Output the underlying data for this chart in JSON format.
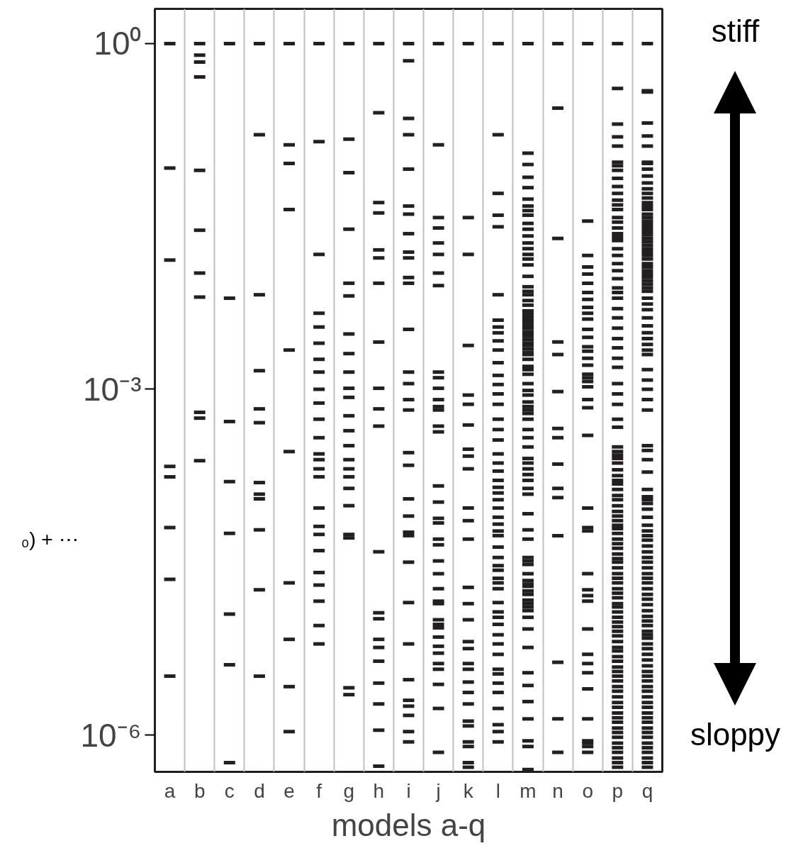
{
  "chart_data": {
    "type": "scatter",
    "log": true,
    "xlabel": "models a-q",
    "categories": [
      "a",
      "b",
      "c",
      "d",
      "e",
      "f",
      "g",
      "h",
      "i",
      "j",
      "k",
      "l",
      "m",
      "n",
      "o",
      "p",
      "q"
    ],
    "ylim": [
      4.79e-07,
      2.0
    ],
    "yticks": [
      {
        "value": 1,
        "label": "10⁰"
      },
      {
        "value": 0.001,
        "label": "10⁻³"
      },
      {
        "value": 1e-06,
        "label": "10⁻⁶"
      }
    ],
    "grid": "x",
    "annotations": [
      "stiff",
      "sloppy",
      "₀) + ⋯"
    ],
    "series": [
      {
        "color": "#231f20",
        "x": [
          "a",
          "a",
          "a",
          "a",
          "a",
          "a",
          "a",
          "a"
        ],
        "values": [
          1,
          0.0832,
          0.0132,
          0.000214,
          0.000174,
          6.31e-05,
          2.24e-05,
          3.24e-06
        ]
      },
      {
        "color": "#231f20",
        "x": [
          "b",
          "b",
          "b",
          "b",
          "b",
          "b",
          "b",
          "b",
          "b",
          "b",
          "b"
        ],
        "values": [
          1,
          0.794,
          0.692,
          0.513,
          0.0794,
          0.024,
          0.0102,
          0.00631,
          0.000631,
          0.000562,
          0.00024
        ]
      },
      {
        "color": "#231f20",
        "x": [
          "c",
          "c",
          "c",
          "c",
          "c",
          "c",
          "c",
          "c"
        ],
        "values": [
          1,
          0.00617,
          0.000525,
          0.000158,
          5.62e-05,
          1.12e-05,
          4.07e-06,
          5.75e-07
        ]
      },
      {
        "color": "#231f20",
        "x": [
          "d",
          "d",
          "d",
          "d",
          "d",
          "d",
          "d",
          "d",
          "d",
          "d",
          "d",
          "d"
        ],
        "values": [
          1,
          0.162,
          0.00661,
          0.00145,
          0.000676,
          0.000513,
          0.000155,
          0.000123,
          0.000112,
          6.03e-05,
          1.82e-05,
          3.24e-06
        ]
      },
      {
        "color": "#231f20",
        "x": [
          "e",
          "e",
          "e",
          "e",
          "e",
          "e",
          "e",
          "e",
          "e",
          "e"
        ],
        "values": [
          1,
          0.132,
          0.0912,
          0.0363,
          0.00219,
          0.000288,
          2.09e-05,
          6.76e-06,
          2.63e-06,
          1.07e-06
        ]
      },
      {
        "color": "#231f20",
        "x": [
          "f",
          "f",
          "f",
          "f",
          "f",
          "f",
          "f",
          "f",
          "f",
          "f",
          "f",
          "f",
          "f",
          "f",
          "f",
          "f",
          "f",
          "f",
          "f",
          "f",
          "f",
          "f",
          "f",
          "f",
          "f"
        ],
        "values": [
          1,
          0.141,
          0.0148,
          0.00457,
          0.00347,
          0.00251,
          0.00182,
          0.00141,
          0.001,
          0.000759,
          0.00055,
          0.00038,
          0.000275,
          0.000245,
          0.000204,
          0.000174,
          9.33e-05,
          6.46e-05,
          5.5e-05,
          3.98e-05,
          2.57e-05,
          2e-05,
          1.45e-05,
          8.91e-06,
          6.17e-06
        ]
      },
      {
        "color": "#231f20",
        "x": [
          "g",
          "g",
          "g",
          "g",
          "g",
          "g",
          "g",
          "g",
          "g",
          "g",
          "g",
          "g",
          "g",
          "g",
          "g",
          "g",
          "g",
          "g",
          "g",
          "g",
          "g",
          "g",
          "g"
        ],
        "values": [
          1,
          0.148,
          0.0759,
          0.0245,
          0.00832,
          0.00646,
          0.00302,
          0.00204,
          0.00141,
          0.00102,
          0.000851,
          0.000589,
          0.000437,
          0.000324,
          0.000245,
          0.000204,
          0.000174,
          0.000138,
          9.77e-05,
          5.5e-05,
          5.13e-05,
          2.57e-06,
          2.24e-06
        ]
      },
      {
        "color": "#231f20",
        "x": [
          "h",
          "h",
          "h",
          "h",
          "h",
          "h",
          "h",
          "h",
          "h",
          "h",
          "h",
          "h",
          "h",
          "h",
          "h",
          "h",
          "h",
          "h",
          "h",
          "h",
          "h"
        ],
        "values": [
          1,
          0.251,
          0.0417,
          0.0339,
          0.0162,
          0.0138,
          0.00832,
          0.00257,
          0.00102,
          0.000676,
          0.000479,
          3.89e-05,
          1.15e-05,
          1.02e-05,
          6.76e-06,
          5.75e-06,
          4.37e-06,
          2.82e-06,
          1.86e-06,
          1.1e-06,
          5.37e-07
        ]
      },
      {
        "color": "#231f20",
        "x": [
          "i",
          "i",
          "i",
          "i",
          "i",
          "i",
          "i",
          "i",
          "i",
          "i",
          "i",
          "i",
          "i",
          "i",
          "i",
          "i",
          "i",
          "i",
          "i",
          "i",
          "i",
          "i",
          "i",
          "i",
          "i",
          "i",
          "i",
          "i",
          "i",
          "i",
          "i",
          "i"
        ],
        "values": [
          1,
          0.708,
          0.224,
          0.162,
          0.0813,
          0.0389,
          0.0331,
          0.0224,
          0.0155,
          0.0138,
          0.00933,
          0.00832,
          0.00331,
          0.00141,
          0.00112,
          0.000813,
          0.000661,
          0.000282,
          0.000219,
          0.000112,
          7.94e-05,
          5.75e-05,
          5.37e-05,
          3.16e-05,
          1.41e-05,
          6.17e-06,
          3.02e-06,
          2e-06,
          1.78e-06,
          1.48e-06,
          1.07e-06,
          8.71e-07
        ]
      },
      {
        "color": "#231f20",
        "x": [
          "j",
          "j",
          "j",
          "j",
          "j",
          "j",
          "j",
          "j",
          "j",
          "j",
          "j",
          "j",
          "j",
          "j",
          "j",
          "j",
          "j",
          "j",
          "j",
          "j",
          "j",
          "j",
          "j",
          "j",
          "j",
          "j",
          "j",
          "j",
          "j",
          "j",
          "j",
          "j",
          "j",
          "j",
          "j",
          "j",
          "j",
          "j"
        ],
        "values": [
          1,
          0.132,
          0.0309,
          0.0251,
          0.0186,
          0.0148,
          0.0102,
          0.00794,
          0.00141,
          0.00126,
          0.00102,
          0.000813,
          0.000708,
          0.000661,
          0.000479,
          0.000427,
          0.000145,
          0.000105,
          7.59e-05,
          6.92e-05,
          5.01e-05,
          4.47e-05,
          3.24e-05,
          2.51e-05,
          1.86e-05,
          1.45e-05,
          1.38e-05,
          1e-05,
          9.12e-06,
          8.51e-06,
          7.08e-06,
          5.89e-06,
          5.13e-06,
          4.17e-06,
          3.72e-06,
          2.75e-06,
          1.7e-06,
          7.08e-07
        ]
      },
      {
        "color": "#231f20",
        "x": [
          "k",
          "k",
          "k",
          "k",
          "k",
          "k",
          "k",
          "k",
          "k",
          "k",
          "k",
          "k",
          "k",
          "k",
          "k",
          "k",
          "k",
          "k",
          "k",
          "k",
          "k",
          "k",
          "k",
          "k",
          "k",
          "k",
          "k",
          "k",
          "k"
        ],
        "values": [
          1,
          0.0309,
          0.0148,
          0.0024,
          0.000891,
          0.000741,
          0.00049,
          0.000302,
          0.000263,
          0.000204,
          9.33e-05,
          7.24e-05,
          5.01e-05,
          1.91e-05,
          1.38e-05,
          1e-05,
          6.46e-06,
          5.62e-06,
          4.17e-06,
          3.72e-06,
          2.88e-06,
          2.34e-06,
          1.86e-06,
          1.32e-06,
          1.2e-06,
          8.71e-07,
          7.94e-07,
          5.75e-07,
          5.25e-07
        ]
      },
      {
        "color": "#231f20",
        "x": [
          "l",
          "l",
          "l",
          "l",
          "l",
          "l",
          "l",
          "l",
          "l",
          "l",
          "l",
          "l",
          "l",
          "l",
          "l",
          "l",
          "l",
          "l",
          "l",
          "l",
          "l",
          "l",
          "l",
          "l",
          "l",
          "l",
          "l",
          "l",
          "l",
          "l",
          "l",
          "l",
          "l",
          "l",
          "l",
          "l",
          "l",
          "l",
          "l",
          "l",
          "l",
          "l",
          "l",
          "l",
          "l",
          "l",
          "l",
          "l",
          "l",
          "l",
          "l",
          "l",
          "l"
        ],
        "values": [
          1,
          0.162,
          0.0501,
          0.0324,
          0.0257,
          0.00661,
          0.00398,
          0.00347,
          0.00309,
          0.00263,
          0.00219,
          0.0017,
          0.00132,
          0.0011,
          0.000912,
          0.000741,
          0.00055,
          0.000447,
          0.000363,
          0.000275,
          0.000229,
          0.000195,
          0.000162,
          0.000141,
          0.000126,
          0.00011,
          9.33e-05,
          7.76e-05,
          6.76e-05,
          5.89e-05,
          5.37e-05,
          4.27e-05,
          3.47e-05,
          2.95e-05,
          2.69e-05,
          2.29e-05,
          2.09e-05,
          1.86e-05,
          1.41e-05,
          1.17e-05,
          1.05e-05,
          9.12e-06,
          7.41e-06,
          6.17e-06,
          5.01e-06,
          3.72e-06,
          3.39e-06,
          2.82e-06,
          2.34e-06,
          1.7e-06,
          1.23e-06,
          1.07e-06,
          8.71e-07
        ]
      },
      {
        "color": "#231f20",
        "x": [
          "m",
          "m",
          "m",
          "m",
          "m",
          "m",
          "m",
          "m",
          "m",
          "m",
          "m",
          "m",
          "m",
          "m",
          "m",
          "m",
          "m",
          "m",
          "m",
          "m",
          "m",
          "m",
          "m",
          "m",
          "m",
          "m",
          "m",
          "m",
          "m",
          "m",
          "m",
          "m",
          "m",
          "m",
          "m",
          "m",
          "m",
          "m",
          "m",
          "m",
          "m",
          "m",
          "m",
          "m",
          "m",
          "m",
          "m",
          "m",
          "m",
          "m",
          "m",
          "m",
          "m",
          "m",
          "m",
          "m",
          "m",
          "m",
          "m",
          "m",
          "m",
          "m",
          "m",
          "m",
          "m",
          "m",
          "m",
          "m",
          "m",
          "m",
          "m",
          "m",
          "m",
          "m",
          "m",
          "m",
          "m",
          "m",
          "m",
          "m",
          "m",
          "m",
          "m",
          "m",
          "m",
          "m",
          "m"
        ],
        "values": [
          1,
          0.112,
          0.0891,
          0.0692,
          0.0562,
          0.0447,
          0.0389,
          0.0355,
          0.0324,
          0.0275,
          0.0245,
          0.0214,
          0.0186,
          0.0166,
          0.0148,
          0.0135,
          0.012,
          0.00955,
          0.00776,
          0.00708,
          0.00661,
          0.00589,
          0.00537,
          0.00479,
          0.00457,
          0.00427,
          0.00398,
          0.0038,
          0.00355,
          0.00339,
          0.00316,
          0.00302,
          0.00288,
          0.00269,
          0.00251,
          0.0024,
          0.00224,
          0.00209,
          0.002,
          0.00182,
          0.00158,
          0.00148,
          0.00135,
          0.00112,
          0.000977,
          0.000891,
          0.000776,
          0.000708,
          0.000661,
          0.000617,
          0.00055,
          0.000447,
          0.00038,
          0.000316,
          0.000251,
          0.000229,
          0.000204,
          0.000182,
          0.000162,
          0.000138,
          0.000123,
          8.32e-05,
          6.03e-05,
          5.01e-05,
          3.47e-05,
          3.24e-05,
          3.02e-05,
          2.51e-05,
          2.19e-05,
          2.04e-05,
          1.95e-05,
          1.78e-05,
          1.66e-05,
          1.48e-05,
          1.38e-05,
          1.29e-05,
          1.2e-05,
          1.05e-05,
          8.32e-06,
          5.75e-06,
          3.47e-06,
          2.69e-06,
          1.95e-06,
          1.38e-06,
          8.91e-07,
          7.94e-07,
          5.01e-07
        ]
      },
      {
        "color": "#231f20",
        "x": [
          "n",
          "n",
          "n",
          "n",
          "n",
          "n",
          "n",
          "n",
          "n",
          "n",
          "n",
          "n",
          "n",
          "n",
          "n"
        ],
        "values": [
          1,
          0.275,
          0.0204,
          0.00257,
          0.002,
          0.000955,
          0.000457,
          0.00038,
          0.000224,
          0.000138,
          0.000115,
          5.37e-05,
          4.27e-06,
          1.38e-06,
          7.08e-07
        ]
      },
      {
        "color": "#231f20",
        "x": [
          "o",
          "o",
          "o",
          "o",
          "o",
          "o",
          "o",
          "o",
          "o",
          "o",
          "o",
          "o",
          "o",
          "o",
          "o",
          "o",
          "o",
          "o",
          "o",
          "o",
          "o",
          "o",
          "o",
          "o",
          "o",
          "o",
          "o",
          "o",
          "o",
          "o",
          "o",
          "o",
          "o",
          "o",
          "o",
          "o",
          "o",
          "o",
          "o",
          "o",
          "o"
        ],
        "values": [
          1,
          0.0288,
          0.0145,
          0.0115,
          0.01,
          0.00832,
          0.00692,
          0.00603,
          0.00513,
          0.00457,
          0.00407,
          0.00331,
          0.00282,
          0.00234,
          0.00214,
          0.00186,
          0.00162,
          0.00135,
          0.00126,
          0.00117,
          0.00105,
          0.000813,
          0.000692,
          0.000398,
          9.33e-05,
          6.31e-05,
          5.89e-05,
          2.51e-05,
          1.82e-05,
          1.62e-05,
          1.45e-05,
          8.32e-06,
          5.01e-06,
          4.17e-06,
          3.47e-06,
          2.51e-06,
          1.38e-06,
          8.91e-07,
          8.51e-07,
          7.94e-07,
          7.08e-07
        ]
      },
      {
        "color": "#231f20",
        "x": [
          "p",
          "p",
          "p",
          "p",
          "p",
          "p",
          "p",
          "p",
          "p",
          "p",
          "p",
          "p",
          "p",
          "p",
          "p",
          "p",
          "p",
          "p",
          "p",
          "p",
          "p",
          "p",
          "p",
          "p",
          "p",
          "p",
          "p",
          "p",
          "p",
          "p",
          "p",
          "p",
          "p",
          "p",
          "p",
          "p",
          "p",
          "p",
          "p",
          "p",
          "p",
          "p",
          "p",
          "p",
          "p",
          "p",
          "p",
          "p",
          "p",
          "p",
          "p",
          "p",
          "p",
          "p",
          "p",
          "p",
          "p",
          "p",
          "p",
          "p",
          "p",
          "p",
          "p",
          "p",
          "p",
          "p",
          "p",
          "p",
          "p",
          "p",
          "p",
          "p",
          "p",
          "p",
          "p",
          "p",
          "p",
          "p",
          "p",
          "p",
          "p",
          "p",
          "p",
          "p",
          "p",
          "p",
          "p",
          "p",
          "p",
          "p",
          "p",
          "p",
          "p",
          "p",
          "p",
          "p",
          "p",
          "p",
          "p",
          "p",
          "p",
          "p",
          "p",
          "p",
          "p",
          "p"
        ],
        "values": [
          1,
          0.407,
          0.2,
          0.155,
          0.129,
          0.0933,
          0.0871,
          0.0794,
          0.0676,
          0.0575,
          0.0501,
          0.0437,
          0.0398,
          0.0363,
          0.0309,
          0.0282,
          0.0251,
          0.0224,
          0.0209,
          0.0195,
          0.0166,
          0.0145,
          0.0123,
          0.0107,
          0.00912,
          0.00759,
          0.00692,
          0.00617,
          0.00501,
          0.00417,
          0.00339,
          0.00275,
          0.00229,
          0.00186,
          0.00155,
          0.00112,
          0.000912,
          0.000741,
          0.00055,
          0.000468,
          0.000316,
          0.000288,
          0.000269,
          0.000251,
          0.000229,
          0.0002,
          0.000178,
          0.000162,
          0.000151,
          0.000135,
          0.00012,
          0.00011,
          9.77e-05,
          8.71e-05,
          7.94e-05,
          7.24e-05,
          6.61e-05,
          6.17e-05,
          5.62e-05,
          5.01e-05,
          4.57e-05,
          4.17e-05,
          3.72e-05,
          3.39e-05,
          3.16e-05,
          2.82e-05,
          2.51e-05,
          2.29e-05,
          2.09e-05,
          1.86e-05,
          1.7e-05,
          1.55e-05,
          1.38e-05,
          1.29e-05,
          1.17e-05,
          1.05e-05,
          9.55e-06,
          8.71e-06,
          7.94e-06,
          7.24e-06,
          6.46e-06,
          5.75e-06,
          5.37e-06,
          4.79e-06,
          4.37e-06,
          3.89e-06,
          3.55e-06,
          3.24e-06,
          2.95e-06,
          2.63e-06,
          2.4e-06,
          2.14e-06,
          1.91e-06,
          1.74e-06,
          1.55e-06,
          1.41e-06,
          1.29e-06,
          1.15e-06,
          1.05e-06,
          9.55e-07,
          8.51e-07,
          7.76e-07,
          7.08e-07,
          6.31e-07,
          5.75e-07,
          5.25e-07
        ]
      },
      {
        "color": "#231f20",
        "x": [
          "q",
          "q",
          "q",
          "q",
          "q",
          "q",
          "q",
          "q",
          "q",
          "q",
          "q",
          "q",
          "q",
          "q",
          "q",
          "q",
          "q",
          "q",
          "q",
          "q",
          "q",
          "q",
          "q",
          "q",
          "q",
          "q",
          "q",
          "q",
          "q",
          "q",
          "q",
          "q",
          "q",
          "q",
          "q",
          "q",
          "q",
          "q",
          "q",
          "q",
          "q",
          "q",
          "q",
          "q",
          "q",
          "q",
          "q",
          "q",
          "q",
          "q",
          "q",
          "q",
          "q",
          "q",
          "q",
          "q",
          "q",
          "q",
          "q",
          "q",
          "q",
          "q",
          "q",
          "q",
          "q",
          "q",
          "q",
          "q",
          "q",
          "q",
          "q",
          "q",
          "q",
          "q",
          "q",
          "q",
          "q",
          "q",
          "q",
          "q",
          "q",
          "q",
          "q",
          "q",
          "q",
          "q",
          "q",
          "q",
          "q",
          "q",
          "q",
          "q",
          "q",
          "q",
          "q",
          "q",
          "q",
          "q",
          "q",
          "q",
          "q",
          "q",
          "q",
          "q",
          "q",
          "q",
          "q",
          "q",
          "q",
          "q",
          "q",
          "q",
          "q"
        ],
        "values": [
          1,
          0.389,
          0.38,
          0.204,
          0.158,
          0.129,
          0.0933,
          0.0912,
          0.0813,
          0.0708,
          0.0617,
          0.055,
          0.0501,
          0.0457,
          0.0417,
          0.0389,
          0.0363,
          0.0331,
          0.0309,
          0.0288,
          0.0269,
          0.0251,
          0.0234,
          0.0219,
          0.0204,
          0.0191,
          0.0178,
          0.0166,
          0.0155,
          0.0145,
          0.0135,
          0.0123,
          0.0115,
          0.0107,
          0.01,
          0.00933,
          0.00871,
          0.00813,
          0.00759,
          0.00708,
          0.00617,
          0.0055,
          0.0049,
          0.00417,
          0.00355,
          0.00309,
          0.00275,
          0.00245,
          0.00219,
          0.002,
          0.00148,
          0.0012,
          0.001,
          0.000813,
          0.000661,
          0.000324,
          0.000295,
          0.000245,
          0.000191,
          0.000135,
          0.000117,
          0.00011,
          0.000102,
          9.12e-05,
          7.76e-05,
          6.61e-05,
          5.89e-05,
          5.37e-05,
          4.9e-05,
          4.37e-05,
          3.89e-05,
          3.47e-05,
          3.16e-05,
          2.82e-05,
          2.51e-05,
          2.29e-05,
          2.09e-05,
          1.86e-05,
          1.66e-05,
          1.51e-05,
          1.35e-05,
          1.2e-05,
          1.07e-05,
          9.77e-06,
          8.91e-06,
          7.94e-06,
          7.41e-06,
          6.92e-06,
          6.17e-06,
          5.62e-06,
          5.01e-06,
          4.47e-06,
          3.98e-06,
          3.55e-06,
          3.24e-06,
          2.95e-06,
          2.63e-06,
          2.4e-06,
          2.14e-06,
          1.91e-06,
          1.74e-06,
          1.55e-06,
          1.41e-06,
          1.29e-06,
          1.15e-06,
          1.05e-06,
          9.55e-07,
          8.51e-07,
          7.76e-07,
          7.08e-07,
          6.31e-07,
          5.75e-07,
          5.25e-07
        ]
      }
    ]
  }
}
